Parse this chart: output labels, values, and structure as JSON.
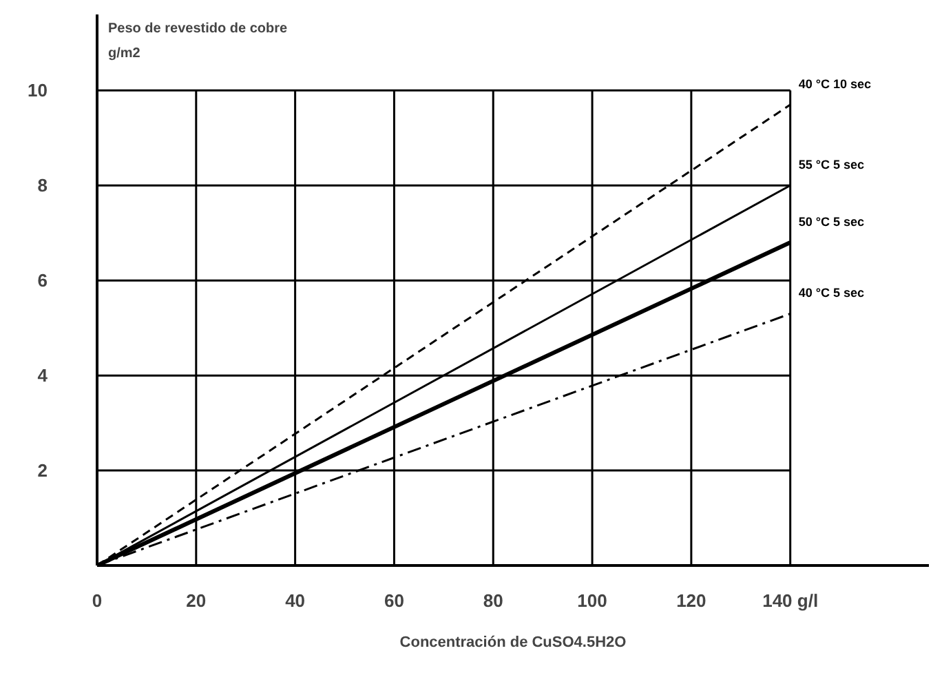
{
  "chart_data": {
    "type": "line",
    "ylabel": "Peso de revestido de cobre",
    "xlabel": "Concentración de CuSO4.5H2O",
    "annotations": [
      "g/m2"
    ],
    "x": [
      0,
      140
    ],
    "series": [
      {
        "name": "40 °C 10 sec",
        "color": "#000000",
        "values": [
          0,
          9.7
        ],
        "line_style": "dashed"
      },
      {
        "name": "55 °C  5 sec",
        "color": "#000000",
        "values": [
          0,
          8.0
        ],
        "line_style": "solid"
      },
      {
        "name": "50 °C  5 sec",
        "color": "#000000",
        "values": [
          0,
          6.8
        ],
        "line_style": "solid"
      },
      {
        "name": "40 °C  5 sec",
        "color": "#000000",
        "values": [
          0,
          5.3
        ],
        "line_style": "dashdot"
      }
    ],
    "xlim": [
      0,
      168
    ],
    "ylim": [
      0,
      11.6
    ],
    "xticks": [
      {
        "value": 0,
        "label": "0"
      },
      20,
      40,
      60,
      80,
      100,
      120,
      {
        "value": 140,
        "label": "140 g/l"
      }
    ],
    "yticks": [
      2,
      4,
      6,
      8,
      10
    ],
    "grid": true,
    "marker": "none"
  }
}
